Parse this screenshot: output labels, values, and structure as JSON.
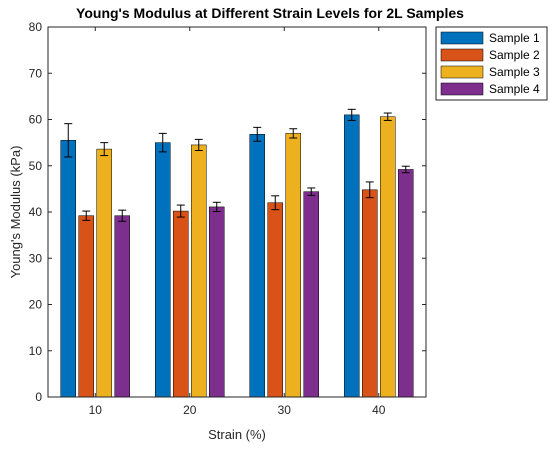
{
  "chart_data": {
    "type": "bar",
    "title": "Young's Modulus at Different Strain Levels for 2L Samples",
    "xlabel": "Strain (%)",
    "ylabel": "Young's Modulus (kPa)",
    "categories": [
      "10",
      "20",
      "30",
      "40"
    ],
    "ylim": [
      0,
      80
    ],
    "yticks": [
      0,
      10,
      20,
      30,
      40,
      50,
      60,
      70,
      80
    ],
    "grid": false,
    "legend_position": "outside top-right",
    "series": [
      {
        "name": "Sample 1",
        "color": "#0072BD",
        "values": [
          55.5,
          55.0,
          56.8,
          61.0
        ],
        "errors": [
          3.6,
          2.0,
          1.5,
          1.2
        ]
      },
      {
        "name": "Sample 2",
        "color": "#D95319",
        "values": [
          39.2,
          40.2,
          42.0,
          44.8
        ],
        "errors": [
          1.0,
          1.3,
          1.5,
          1.7
        ]
      },
      {
        "name": "Sample 3",
        "color": "#EDB120",
        "values": [
          53.6,
          54.5,
          57.0,
          60.6
        ],
        "errors": [
          1.4,
          1.2,
          1.0,
          0.8
        ]
      },
      {
        "name": "Sample 4",
        "color": "#7E2F8E",
        "values": [
          39.2,
          41.1,
          44.4,
          49.2
        ],
        "errors": [
          1.2,
          1.0,
          0.8,
          0.7
        ]
      }
    ]
  }
}
